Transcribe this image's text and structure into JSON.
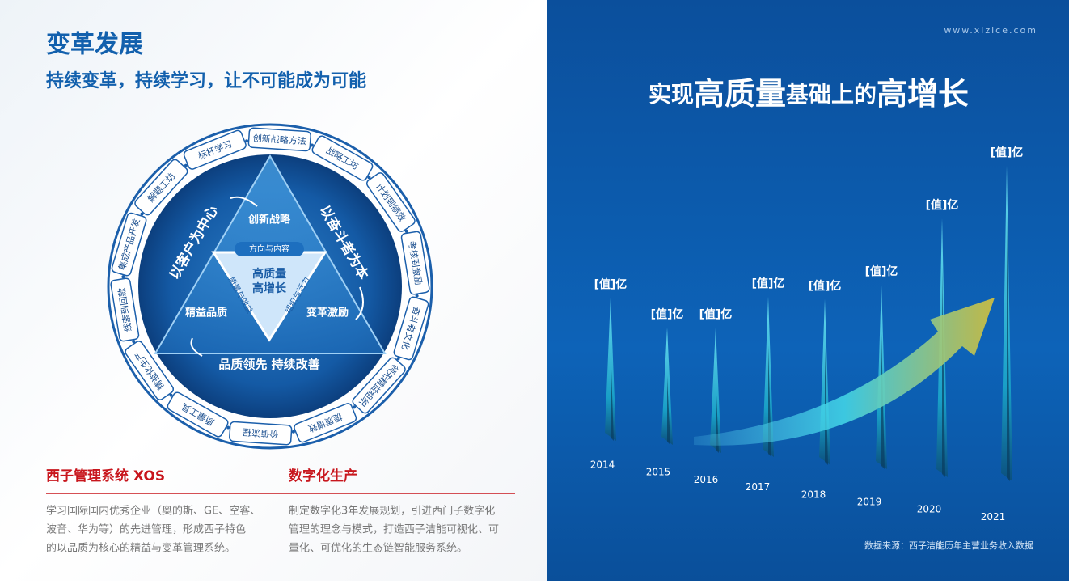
{
  "left": {
    "title": "变革发展",
    "subtitle": "持续变革，持续学习，让不可能成为可能",
    "ring_items": [
      "标杆学习",
      "创新战略方法",
      "战略工坊",
      "计划到绩效",
      "考核到激励",
      "奋斗者文化",
      "领先精益组织",
      "提质增效",
      "价值流程",
      "质量工具",
      "精益化生产",
      "线索到回款",
      "集成产品开发",
      "解题工坊"
    ],
    "triangle": {
      "top": "创新战略",
      "left": "精益品质",
      "right": "变革激励",
      "bottom": "品质领先 持续改善",
      "side_left": "以客户为中心",
      "side_right": "以奋斗者为本",
      "inner_top": "方向与内容",
      "inner_center": [
        "高质量",
        "高增长"
      ],
      "inner_left": "质量与效益",
      "inner_right": "组织与活力"
    },
    "sections": [
      {
        "heading": "西子管理系统 XOS",
        "lines": [
          "学习国际国内优秀企业（奥的斯、GE、空客、",
          "波音、华为等）的先进管理，形成西子特色",
          "的以品质为核心的精益与变革管理系统。"
        ]
      },
      {
        "heading": "数字化生产",
        "lines": [
          "制定数字化3年发展规划，引进西门子数字化",
          "管理的理念与模式，打造西子洁能可视化、可",
          "量化、可优化的生态链智能服务系统。"
        ]
      }
    ]
  },
  "right": {
    "website": "www.xizice.com",
    "title": [
      "实现",
      "高质量",
      "基础上的",
      "高增长"
    ],
    "years": [
      "2014",
      "2015",
      "2016",
      "2017",
      "2018",
      "2019",
      "2020",
      "2021"
    ],
    "value_labels": [
      "[值]亿",
      "[值]亿",
      "[值]亿",
      "[值]亿",
      "[值]亿",
      "[值]亿",
      "[值]亿",
      "[值]亿"
    ],
    "source": "数据来源：西子洁能历年主营业务收入数据"
  }
}
